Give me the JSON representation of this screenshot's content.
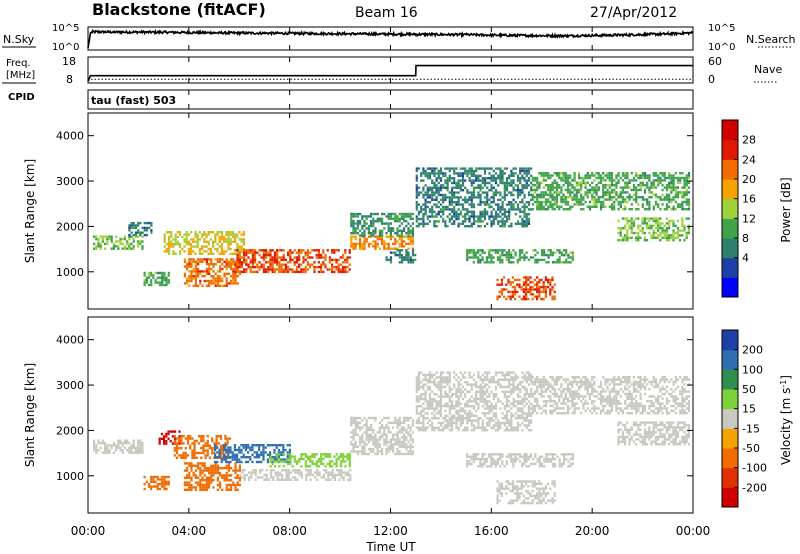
{
  "header": {
    "title": "Blackstone (fitACF)",
    "beam": "Beam 16",
    "date": "27/Apr/2012"
  },
  "panels": {
    "nsky": {
      "left_label": "N.Sky",
      "right_label": "N.Search",
      "left_ticks": [
        "10^5",
        "10^0"
      ],
      "right_ticks": [
        "10^5",
        "10^0"
      ]
    },
    "freq": {
      "left_label_line1": "Freq.",
      "left_label_line2": "[MHz]",
      "cpid_label": "CPID",
      "right_label": "Nave",
      "left_ticks": [
        "18",
        "8"
      ],
      "right_ticks": [
        "60",
        "0"
      ]
    },
    "tau_label": "tau (fast) 503"
  },
  "chart_data": [
    {
      "type": "line",
      "name": "N.Sky / N.Search",
      "x_units": "hours UT",
      "xlim": [
        0,
        24
      ],
      "description_free": true,
      "series": [
        {
          "name": "N.Sky",
          "x": [
            0,
            0.1,
            0.2,
            1,
            3,
            5,
            7,
            9,
            11,
            13,
            15,
            17,
            19,
            21,
            23,
            24
          ],
          "y": [
            0.0,
            0.8,
            0.85,
            0.84,
            0.83,
            0.8,
            0.78,
            0.76,
            0.74,
            0.72,
            0.7,
            0.66,
            0.64,
            0.68,
            0.74,
            0.8
          ]
        }
      ]
    },
    {
      "type": "line",
      "name": "Freq / Nave",
      "x_units": "hours UT",
      "xlim": [
        0,
        24
      ],
      "ylim_left": [
        8,
        18
      ],
      "ylim_right": [
        0,
        60
      ],
      "series": [
        {
          "name": "Freq.",
          "x": [
            0,
            0.1,
            13,
            13.01,
            24
          ],
          "y": [
            8,
            10.4,
            10.4,
            15.0,
            15.0
          ]
        },
        {
          "name": "Nave",
          "x": [
            0,
            0.1,
            24
          ],
          "y": [
            0,
            5,
            5
          ]
        }
      ]
    },
    {
      "type": "heatmap",
      "quantity": "Power",
      "colorbar_label": "Power [dB]",
      "xlabel": "",
      "ylabel": "Slant Range [km]",
      "xlim": [
        0,
        24
      ],
      "ylim": [
        180,
        4500
      ],
      "yticks": [
        1000,
        2000,
        3000,
        4000
      ],
      "color_levels": [
        4,
        8,
        12,
        16,
        20,
        24,
        28
      ],
      "colors": [
        "#0000ff",
        "#1f3fa8",
        "#2f7f6f",
        "#3fa34a",
        "#9fd13a",
        "#f5a300",
        "#f26b00",
        "#e01a00",
        "#d00000"
      ],
      "regions": [
        {
          "t": [
            0.2,
            2.2
          ],
          "r": [
            1500,
            1800
          ],
          "v": 14
        },
        {
          "t": [
            1.6,
            2.5
          ],
          "r": [
            1800,
            2100
          ],
          "v": 8
        },
        {
          "t": [
            2.2,
            3.2
          ],
          "r": [
            700,
            1000
          ],
          "v": 12
        },
        {
          "t": [
            3.0,
            6.2
          ],
          "r": [
            1400,
            1900
          ],
          "v": 18
        },
        {
          "t": [
            3.8,
            6.0
          ],
          "r": [
            700,
            1300
          ],
          "v": 24
        },
        {
          "t": [
            5.8,
            10.4
          ],
          "r": [
            1000,
            1500
          ],
          "v": 26
        },
        {
          "t": [
            10.4,
            12.9
          ],
          "r": [
            1500,
            1800
          ],
          "v": 22
        },
        {
          "t": [
            10.4,
            12.9
          ],
          "r": [
            1800,
            2300
          ],
          "v": 10
        },
        {
          "t": [
            11.8,
            13.0
          ],
          "r": [
            1200,
            1500
          ],
          "v": 8
        },
        {
          "t": [
            13.0,
            17.6
          ],
          "r": [
            2000,
            3300
          ],
          "v": 8
        },
        {
          "t": [
            15.0,
            19.2
          ],
          "r": [
            1200,
            1500
          ],
          "v": 12
        },
        {
          "t": [
            16.2,
            18.5
          ],
          "r": [
            400,
            900
          ],
          "v": 26
        },
        {
          "t": [
            17.6,
            23.8
          ],
          "r": [
            2400,
            3200
          ],
          "v": 12
        },
        {
          "t": [
            21.0,
            23.8
          ],
          "r": [
            1700,
            2200
          ],
          "v": 14
        }
      ]
    },
    {
      "type": "heatmap",
      "quantity": "Velocity",
      "colorbar_label": "Velocity [m s^-1]",
      "xlabel": "Time UT",
      "ylabel": "Slant Range [km]",
      "xlim": [
        0,
        24
      ],
      "ylim": [
        180,
        4500
      ],
      "xticks": [
        "00:00",
        "04:00",
        "08:00",
        "12:00",
        "16:00",
        "20:00",
        "00:00"
      ],
      "yticks": [
        1000,
        2000,
        3000,
        4000
      ],
      "color_levels": [
        200,
        100,
        50,
        15,
        -15,
        -50,
        -100,
        -200
      ],
      "colors": [
        "#1f3fa8",
        "#2f6fb0",
        "#2f8f4f",
        "#7fd13a",
        "#c8c8c0",
        "#f5a300",
        "#f26b00",
        "#e03000",
        "#d00000"
      ],
      "regions": [
        {
          "t": [
            0.2,
            2.2
          ],
          "r": [
            1500,
            1800
          ],
          "v": 0
        },
        {
          "t": [
            2.2,
            3.2
          ],
          "r": [
            700,
            1000
          ],
          "v": -60
        },
        {
          "t": [
            2.8,
            3.6
          ],
          "r": [
            1700,
            2000
          ],
          "v": -250
        },
        {
          "t": [
            3.4,
            5.6
          ],
          "r": [
            1400,
            1900
          ],
          "v": -80
        },
        {
          "t": [
            3.8,
            6.0
          ],
          "r": [
            700,
            1300
          ],
          "v": -60
        },
        {
          "t": [
            5.0,
            8.0
          ],
          "r": [
            1300,
            1700
          ],
          "v": 150
        },
        {
          "t": [
            7.2,
            10.4
          ],
          "r": [
            1200,
            1500
          ],
          "v": 30
        },
        {
          "t": [
            6.0,
            10.4
          ],
          "r": [
            900,
            1150
          ],
          "v": 0
        },
        {
          "t": [
            10.4,
            12.9
          ],
          "r": [
            1500,
            2300
          ],
          "v": 0
        },
        {
          "t": [
            13.0,
            17.6
          ],
          "r": [
            2000,
            3300
          ],
          "v": 0
        },
        {
          "t": [
            15.0,
            19.2
          ],
          "r": [
            1200,
            1500
          ],
          "v": 0
        },
        {
          "t": [
            16.2,
            18.5
          ],
          "r": [
            400,
            900
          ],
          "v": 0
        },
        {
          "t": [
            17.6,
            23.8
          ],
          "r": [
            2400,
            3200
          ],
          "v": 0
        },
        {
          "t": [
            21.0,
            23.8
          ],
          "r": [
            1700,
            2200
          ],
          "v": 0
        }
      ]
    }
  ],
  "colorbars": {
    "power": {
      "label": "Power [dB]",
      "ticks": [
        "28",
        "24",
        "20",
        "16",
        "12",
        "8",
        "4"
      ]
    },
    "velocity": {
      "label": "Velocity [m s",
      "label_sup": "-1",
      "label_end": "]",
      "ticks": [
        "200",
        "100",
        "50",
        "15",
        "-15",
        "-50",
        "-100",
        "-200"
      ]
    }
  },
  "axes": {
    "ylabel": "Slant Range [km]",
    "xlabel": "Time UT",
    "xticks": [
      "00:00",
      "04:00",
      "08:00",
      "12:00",
      "16:00",
      "20:00",
      "00:00"
    ],
    "yticks": [
      "1000",
      "2000",
      "3000",
      "4000"
    ]
  }
}
